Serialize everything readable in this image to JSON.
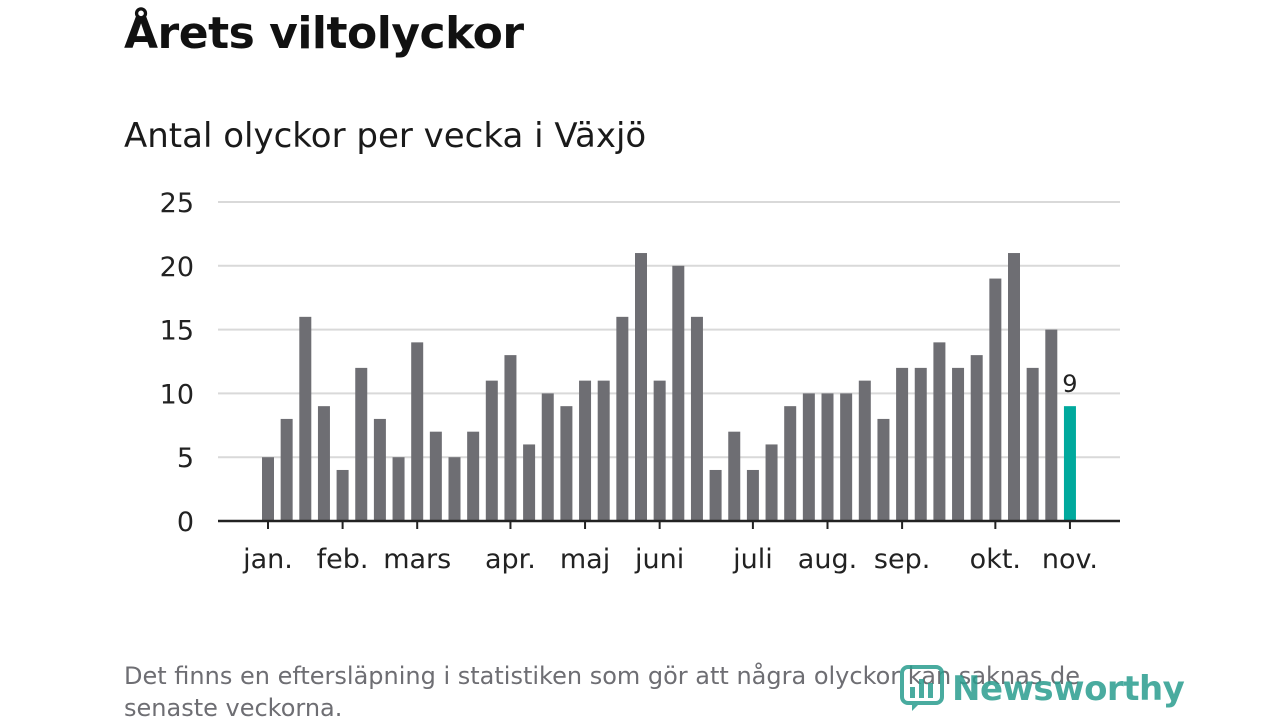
{
  "title": "Årets viltolyckor",
  "subtitle": "Antal olyckor per vecka i Växjö",
  "footnote": "Det finns en eftersläpning i statistiken som gör att några olyckor kan saknas de senaste veckorna.",
  "brand": {
    "name": "Newsworthy",
    "icon": "newsworthy-logo-icon"
  },
  "colors": {
    "bar": "#6e6e73",
    "highlight": "#00a99d",
    "grid": "#d9d9d9",
    "axis": "#222222",
    "text": "#222222",
    "brand": "#2a9d8f"
  },
  "chart_data": {
    "type": "bar",
    "title": "Antal olyckor per vecka i Växjö",
    "xlabel": "",
    "ylabel": "",
    "ylim": [
      0,
      25
    ],
    "yticks": [
      0,
      5,
      10,
      15,
      20,
      25
    ],
    "grid": true,
    "values": [
      5,
      8,
      16,
      9,
      4,
      12,
      8,
      5,
      14,
      7,
      5,
      7,
      11,
      13,
      6,
      10,
      9,
      11,
      11,
      16,
      21,
      11,
      20,
      16,
      4,
      7,
      4,
      6,
      9,
      10,
      10,
      10,
      11,
      8,
      12,
      12,
      14,
      12,
      13,
      19,
      21,
      12,
      15,
      9
    ],
    "highlight_index": 43,
    "highlight_label": "9",
    "month_ticks": [
      {
        "label": "jan.",
        "week": 1
      },
      {
        "label": "feb.",
        "week": 5
      },
      {
        "label": "mars",
        "week": 9
      },
      {
        "label": "apr.",
        "week": 14
      },
      {
        "label": "maj",
        "week": 18
      },
      {
        "label": "juni",
        "week": 22
      },
      {
        "label": "juli",
        "week": 27
      },
      {
        "label": "aug.",
        "week": 31
      },
      {
        "label": "sep.",
        "week": 35
      },
      {
        "label": "okt.",
        "week": 40
      },
      {
        "label": "nov.",
        "week": 44
      }
    ]
  }
}
